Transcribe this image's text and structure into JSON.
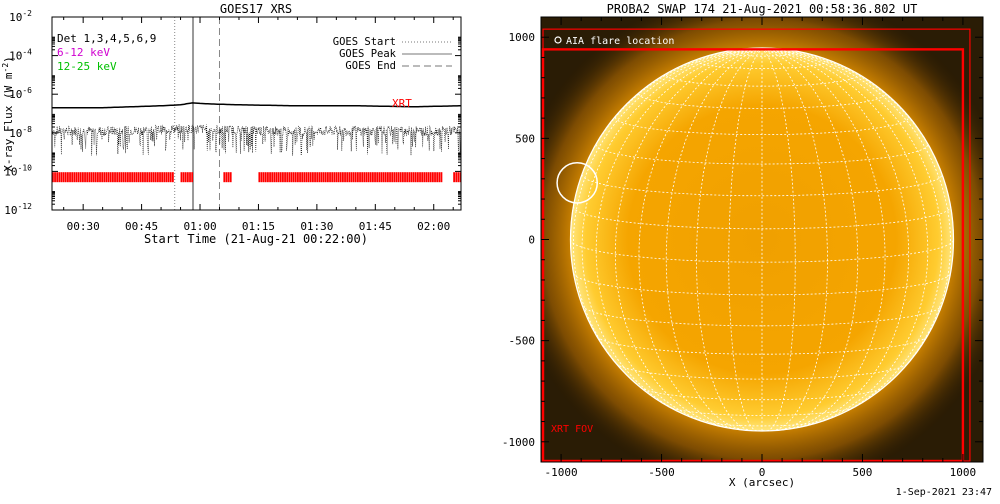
{
  "chart_data": [
    {
      "type": "line",
      "title": "GOES17 XRS",
      "xlabel": "Start Time (21-Aug-21 00:22:00)",
      "ylabel": "X-ray Flux (W m",
      "ylabel_sup": "-2",
      "ylabel_close": ")",
      "yscale": "log",
      "ylim": [
        1e-12,
        0.01
      ],
      "xlim_minutes": [
        22,
        127
      ],
      "yticks": [
        {
          "exp": -12,
          "label": "10",
          "sup": "-12"
        },
        {
          "exp": -10,
          "label": "10",
          "sup": "-10"
        },
        {
          "exp": -8,
          "label": "10",
          "sup": "-8"
        },
        {
          "exp": -6,
          "label": "10",
          "sup": "-6"
        },
        {
          "exp": -4,
          "label": "10",
          "sup": "-4"
        },
        {
          "exp": -2,
          "label": "10",
          "sup": "-2"
        }
      ],
      "xticks": [
        {
          "minute": 30,
          "label": "00:30"
        },
        {
          "minute": 45,
          "label": "00:45"
        },
        {
          "minute": 60,
          "label": "01:00"
        },
        {
          "minute": 75,
          "label": "01:15"
        },
        {
          "minute": 90,
          "label": "01:30"
        },
        {
          "minute": 105,
          "label": "01:45"
        },
        {
          "minute": 120,
          "label": "02:00"
        }
      ],
      "energy_labels": [
        {
          "text": "Det 1,3,4,5,6,9",
          "color": "#000000"
        },
        {
          "text": "6-12 keV",
          "color": "#d000d0"
        },
        {
          "text": "12-25 keV",
          "color": "#00c000"
        }
      ],
      "legend": {
        "placement": "top-right",
        "items": [
          {
            "label": "GOES Start",
            "style": "dotted"
          },
          {
            "label": "GOES Peak",
            "style": "solid"
          },
          {
            "label": "GOES End",
            "style": "dashed"
          }
        ]
      },
      "goes_markers": {
        "start": 53.5,
        "peak": 58.2,
        "end": 65.0
      },
      "series": [
        {
          "key": "long",
          "color": "#000000",
          "x": [
            22,
            35,
            50,
            55,
            58,
            62,
            70,
            85,
            100,
            115,
            127
          ],
          "log_values": [
            -6.7,
            -6.7,
            -6.6,
            -6.55,
            -6.45,
            -6.5,
            -6.55,
            -6.6,
            -6.6,
            -6.65,
            -6.6
          ]
        },
        {
          "key": "short",
          "color": "#000000",
          "x": [
            22,
            40,
            55,
            60,
            80,
            100,
            127
          ],
          "log_values": [
            -7.9,
            -7.9,
            -7.8,
            -7.8,
            -7.9,
            -7.9,
            -7.9
          ]
        }
      ],
      "xrt_label": "XRT",
      "xrt_color": "#ff0000",
      "xrt_coverage_minutes": [
        [
          22,
          53
        ],
        [
          55,
          58
        ],
        [
          66,
          68
        ],
        [
          75,
          122
        ],
        [
          125,
          127
        ]
      ]
    },
    {
      "type": "image",
      "title": "PROBA2 SWAP 174 21-Aug-2021 00:58:36.802 UT",
      "xlabel": "X (arcsec)",
      "xlim": [
        -1100,
        1100
      ],
      "ylim": [
        -1100,
        1100
      ],
      "xticks": [
        -1000,
        -500,
        0,
        500,
        1000
      ],
      "yticks": [
        -1000,
        -500,
        0,
        500,
        1000
      ],
      "x_tick_labels": [
        "-1000",
        "-500",
        "0",
        "500",
        "1000"
      ],
      "y_tick_labels": [
        "-1000",
        "-500",
        "0",
        "500",
        "1000"
      ],
      "solar_radius_arcsec": 950,
      "flare_location": {
        "x": -920,
        "y": 280,
        "radius": 100
      },
      "flare_legend": "AIA flare location",
      "fov_label": "XRT FOV",
      "fov_color": "#ff0000",
      "xrt_fov_boxes": [
        {
          "x0": -1090,
          "x1": 1035,
          "y0": -1095,
          "y1": 1040
        },
        {
          "x0": -1090,
          "x1": 1000,
          "y0": -1095,
          "y1": 940
        }
      ]
    }
  ],
  "footer": {
    "timestamp": "1-Sep-2021 23:47"
  }
}
